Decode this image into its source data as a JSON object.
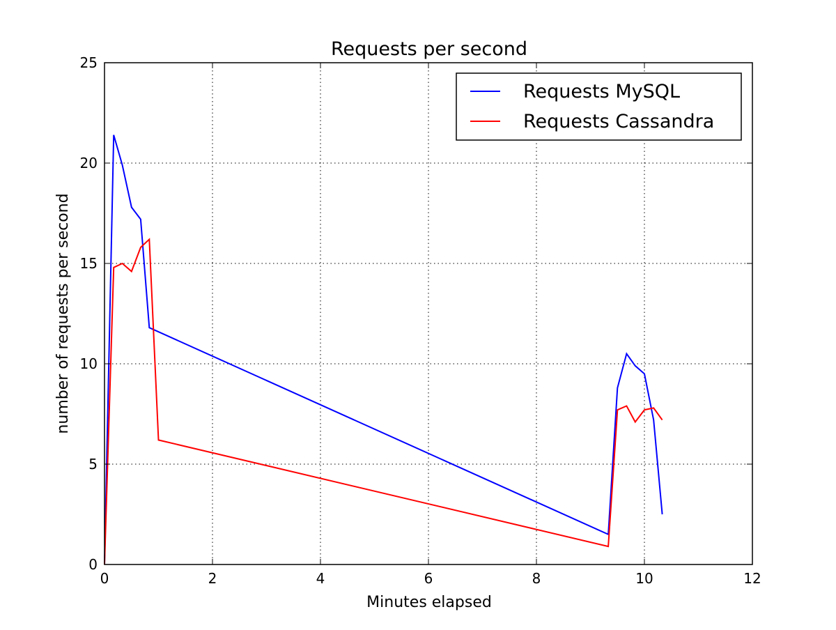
{
  "chart_data": {
    "type": "line",
    "title": "Requests per second",
    "xlabel": "Minutes elapsed",
    "ylabel": "number of requests per second",
    "xlim": [
      0,
      12
    ],
    "ylim": [
      0,
      25
    ],
    "xticks": [
      0,
      2,
      4,
      6,
      8,
      10,
      12
    ],
    "yticks": [
      0,
      5,
      10,
      15,
      20,
      25
    ],
    "grid": true,
    "legend_position": "top-right",
    "series": [
      {
        "name": "Requests MySQL",
        "color": "#0000ff",
        "x": [
          0,
          0.17,
          0.33,
          0.5,
          0.67,
          0.83,
          9.33,
          9.5,
          9.67,
          9.83,
          10.0,
          10.17,
          10.33
        ],
        "y": [
          0,
          21.4,
          19.9,
          17.8,
          17.2,
          11.8,
          1.5,
          8.8,
          10.5,
          9.9,
          9.5,
          7.2,
          2.5
        ]
      },
      {
        "name": "Requests Cassandra",
        "color": "#ff0000",
        "x": [
          0,
          0.17,
          0.33,
          0.5,
          0.67,
          0.83,
          1.0,
          9.33,
          9.5,
          9.67,
          9.83,
          10.0,
          10.17,
          10.33
        ],
        "y": [
          0,
          14.8,
          15.0,
          14.6,
          15.8,
          16.2,
          6.2,
          0.9,
          7.7,
          7.9,
          7.1,
          7.7,
          7.8,
          7.2
        ]
      }
    ]
  }
}
